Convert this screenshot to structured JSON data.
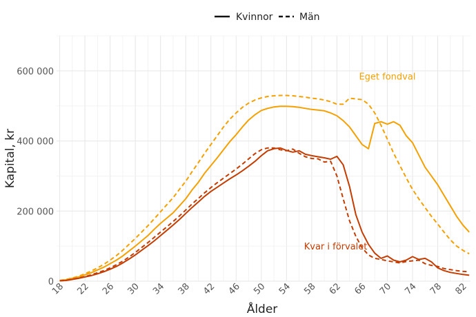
{
  "chart_data": {
    "type": "line",
    "xlabel": "Ålder",
    "ylabel": "Kapital, kr",
    "xlim": [
      17.5,
      83.2
    ],
    "ylim": [
      0,
      700000
    ],
    "x_ticks": [
      18,
      22,
      26,
      30,
      34,
      38,
      42,
      46,
      50,
      54,
      58,
      62,
      66,
      70,
      74,
      78,
      82
    ],
    "y_ticks": [
      0,
      200000,
      400000,
      600000
    ],
    "y_tick_labels": [
      "0",
      "200 000",
      "400 000",
      "600 000"
    ],
    "legend": {
      "position": "top",
      "entries": [
        {
          "label": "Kvinnor",
          "style": "solid"
        },
        {
          "label": "Män",
          "style": "dashed"
        }
      ]
    },
    "annotations": [
      {
        "text": "Eget fondval",
        "color": "#f5a000",
        "x": 70,
        "y": 575000
      },
      {
        "text": "Kvar i förvalet",
        "color": "#c43c00",
        "x": 61.8,
        "y": 90000
      }
    ],
    "series": [
      {
        "name": "Eget fondval – Kvinnor",
        "group": "Eget fondval",
        "sex": "Kvinnor",
        "style": "solid",
        "color": "#f5a000",
        "x": [
          18,
          19,
          20,
          21,
          22,
          23,
          24,
          25,
          26,
          27,
          28,
          29,
          30,
          31,
          32,
          33,
          34,
          35,
          36,
          37,
          38,
          39,
          40,
          41,
          42,
          43,
          44,
          45,
          46,
          47,
          48,
          49,
          50,
          51,
          52,
          53,
          54,
          55,
          56,
          57,
          58,
          59,
          60,
          61,
          62,
          63,
          64,
          65,
          66,
          67,
          68,
          69,
          70,
          71,
          72,
          73,
          74,
          75,
          76,
          77,
          78,
          79,
          80,
          81,
          82,
          83
        ],
        "y": [
          2000,
          4000,
          8000,
          12000,
          18000,
          24000,
          32000,
          40000,
          50000,
          60000,
          72000,
          86000,
          100000,
          115000,
          130000,
          148000,
          165000,
          180000,
          195000,
          215000,
          235000,
          260000,
          282000,
          308000,
          330000,
          352000,
          375000,
          398000,
          418000,
          440000,
          460000,
          475000,
          487000,
          493000,
          497000,
          499000,
          499000,
          498000,
          496000,
          493000,
          490000,
          488000,
          486000,
          480000,
          472000,
          458000,
          440000,
          415000,
          390000,
          378000,
          450000,
          455000,
          448000,
          455000,
          445000,
          415000,
          395000,
          360000,
          325000,
          300000,
          275000,
          245000,
          215000,
          185000,
          160000,
          140000
        ]
      },
      {
        "name": "Eget fondval – Män",
        "group": "Eget fondval",
        "sex": "Män",
        "style": "dashed",
        "color": "#f5a000",
        "x": [
          18,
          19,
          20,
          21,
          22,
          23,
          24,
          25,
          26,
          27,
          28,
          29,
          30,
          31,
          32,
          33,
          34,
          35,
          36,
          37,
          38,
          39,
          40,
          41,
          42,
          43,
          44,
          45,
          46,
          47,
          48,
          49,
          50,
          51,
          52,
          53,
          54,
          55,
          56,
          57,
          58,
          59,
          60,
          61,
          62,
          63,
          64,
          65,
          66,
          67,
          68,
          69,
          70,
          71,
          72,
          73,
          74,
          75,
          76,
          77,
          78,
          79,
          80,
          81,
          82,
          83
        ],
        "y": [
          2000,
          5000,
          9000,
          14000,
          21000,
          29000,
          38000,
          48000,
          60000,
          73000,
          88000,
          105000,
          122000,
          140000,
          158000,
          178000,
          198000,
          218000,
          238000,
          262000,
          285000,
          312000,
          338000,
          365000,
          390000,
          415000,
          440000,
          462000,
          480000,
          496000,
          508000,
          517000,
          523000,
          527000,
          529000,
          530000,
          530000,
          529000,
          527000,
          525000,
          522000,
          520000,
          517000,
          512000,
          505000,
          505000,
          522000,
          520000,
          518000,
          505000,
          480000,
          445000,
          405000,
          365000,
          330000,
          295000,
          262000,
          235000,
          210000,
          185000,
          163000,
          140000,
          118000,
          100000,
          88000,
          78000
        ]
      },
      {
        "name": "Kvar i förvalet – Kvinnor",
        "group": "Kvar i förvalet",
        "sex": "Kvinnor",
        "style": "solid",
        "color": "#c43c00",
        "x": [
          18,
          19,
          20,
          21,
          22,
          23,
          24,
          25,
          26,
          27,
          28,
          29,
          30,
          31,
          32,
          33,
          34,
          35,
          36,
          37,
          38,
          39,
          40,
          41,
          42,
          43,
          44,
          45,
          46,
          47,
          48,
          49,
          50,
          51,
          52,
          53,
          54,
          55,
          56,
          57,
          58,
          59,
          60,
          61,
          62,
          63,
          64,
          65,
          66,
          67,
          68,
          69,
          70,
          71,
          72,
          73,
          74,
          75,
          76,
          77,
          78,
          79,
          80,
          81,
          82,
          83
        ],
        "y": [
          1000,
          2000,
          5000,
          8000,
          12000,
          16000,
          21000,
          27000,
          34000,
          42000,
          52000,
          63000,
          75000,
          88000,
          101000,
          115000,
          130000,
          145000,
          160000,
          176000,
          193000,
          210000,
          226000,
          242000,
          256000,
          268000,
          280000,
          292000,
          303000,
          315000,
          328000,
          342000,
          358000,
          372000,
          378000,
          380000,
          373000,
          368000,
          372000,
          362000,
          358000,
          355000,
          352000,
          348000,
          356000,
          332000,
          270000,
          190000,
          140000,
          105000,
          80000,
          65000,
          72000,
          60000,
          55000,
          60000,
          70000,
          62000,
          65000,
          55000,
          38000,
          30000,
          25000,
          22000,
          19000,
          17000
        ]
      },
      {
        "name": "Kvar i förvalet – Män",
        "group": "Kvar i förvalet",
        "sex": "Män",
        "style": "dashed",
        "color": "#c43c00",
        "x": [
          18,
          19,
          20,
          21,
          22,
          23,
          24,
          25,
          26,
          27,
          28,
          29,
          30,
          31,
          32,
          33,
          34,
          35,
          36,
          37,
          38,
          39,
          40,
          41,
          42,
          43,
          44,
          45,
          46,
          47,
          48,
          49,
          50,
          51,
          52,
          53,
          54,
          55,
          56,
          57,
          58,
          59,
          60,
          61,
          62,
          63,
          64,
          65,
          66,
          67,
          68,
          69,
          70,
          71,
          72,
          73,
          74,
          75,
          76,
          77,
          78,
          79,
          80,
          81,
          82,
          83
        ],
        "y": [
          1000,
          2500,
          5500,
          9000,
          13000,
          18000,
          24000,
          30000,
          38000,
          47000,
          57000,
          69000,
          82000,
          96000,
          110000,
          125000,
          140000,
          155000,
          170000,
          186000,
          203000,
          220000,
          236000,
          252000,
          267000,
          281000,
          294000,
          307000,
          320000,
          334000,
          349000,
          364000,
          375000,
          380000,
          380000,
          375000,
          372000,
          377000,
          365000,
          355000,
          350000,
          349000,
          340000,
          342000,
          300000,
          235000,
          172000,
          128000,
          95000,
          75000,
          65000,
          62000,
          58000,
          55000,
          52000,
          56000,
          58000,
          60000,
          50000,
          45000,
          42000,
          36000,
          33000,
          30000,
          28000,
          27000
        ]
      }
    ]
  }
}
